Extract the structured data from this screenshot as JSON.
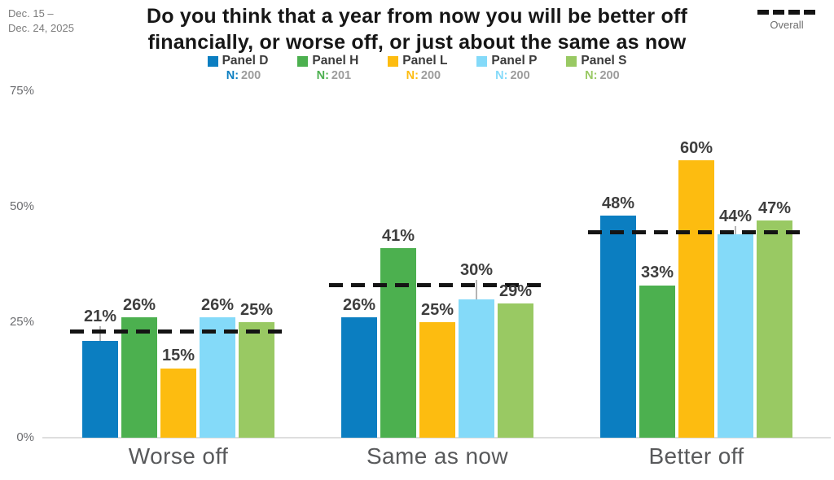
{
  "meta": {
    "date_line1": "Dec. 15 –",
    "date_line2": "Dec. 24, 2025"
  },
  "title": {
    "line1": "Do you think that a year from now you will be better off",
    "line2": "financially, or worse off, or just about the same as now"
  },
  "legend": {
    "n_prefix": "N:",
    "overall_label": "Overall"
  },
  "chart_data": {
    "type": "bar",
    "title": "Do you think that a year from now you will be better off financially, or worse off, or just about the same as now",
    "categories": [
      "Worse off",
      "Same as now",
      "Better off"
    ],
    "series": [
      {
        "name": "Panel D",
        "n": "200",
        "color": "#0b7ec1",
        "values": [
          21,
          26,
          48
        ]
      },
      {
        "name": "Panel H",
        "n": "201",
        "color": "#4cb04f",
        "values": [
          26,
          41,
          33
        ]
      },
      {
        "name": "Panel L",
        "n": "200",
        "color": "#fdbc10",
        "values": [
          15,
          25,
          60
        ]
      },
      {
        "name": "Panel P",
        "n": "200",
        "color": "#84daf9",
        "values": [
          26,
          30,
          44
        ]
      },
      {
        "name": "Panel S",
        "n": "200",
        "color": "#99c963",
        "values": [
          25,
          29,
          47
        ]
      }
    ],
    "overall_line": {
      "label": "Overall",
      "style": "dashed",
      "color": "#141414",
      "values": [
        23,
        33,
        44.5
      ]
    },
    "y_axis": {
      "tick_labels": [
        "0%",
        "25%",
        "50%",
        "75%"
      ],
      "tick_values": [
        0,
        25,
        50,
        75
      ],
      "max": 75,
      "grid": false
    },
    "value_suffix": "%",
    "legend_position": "top"
  }
}
